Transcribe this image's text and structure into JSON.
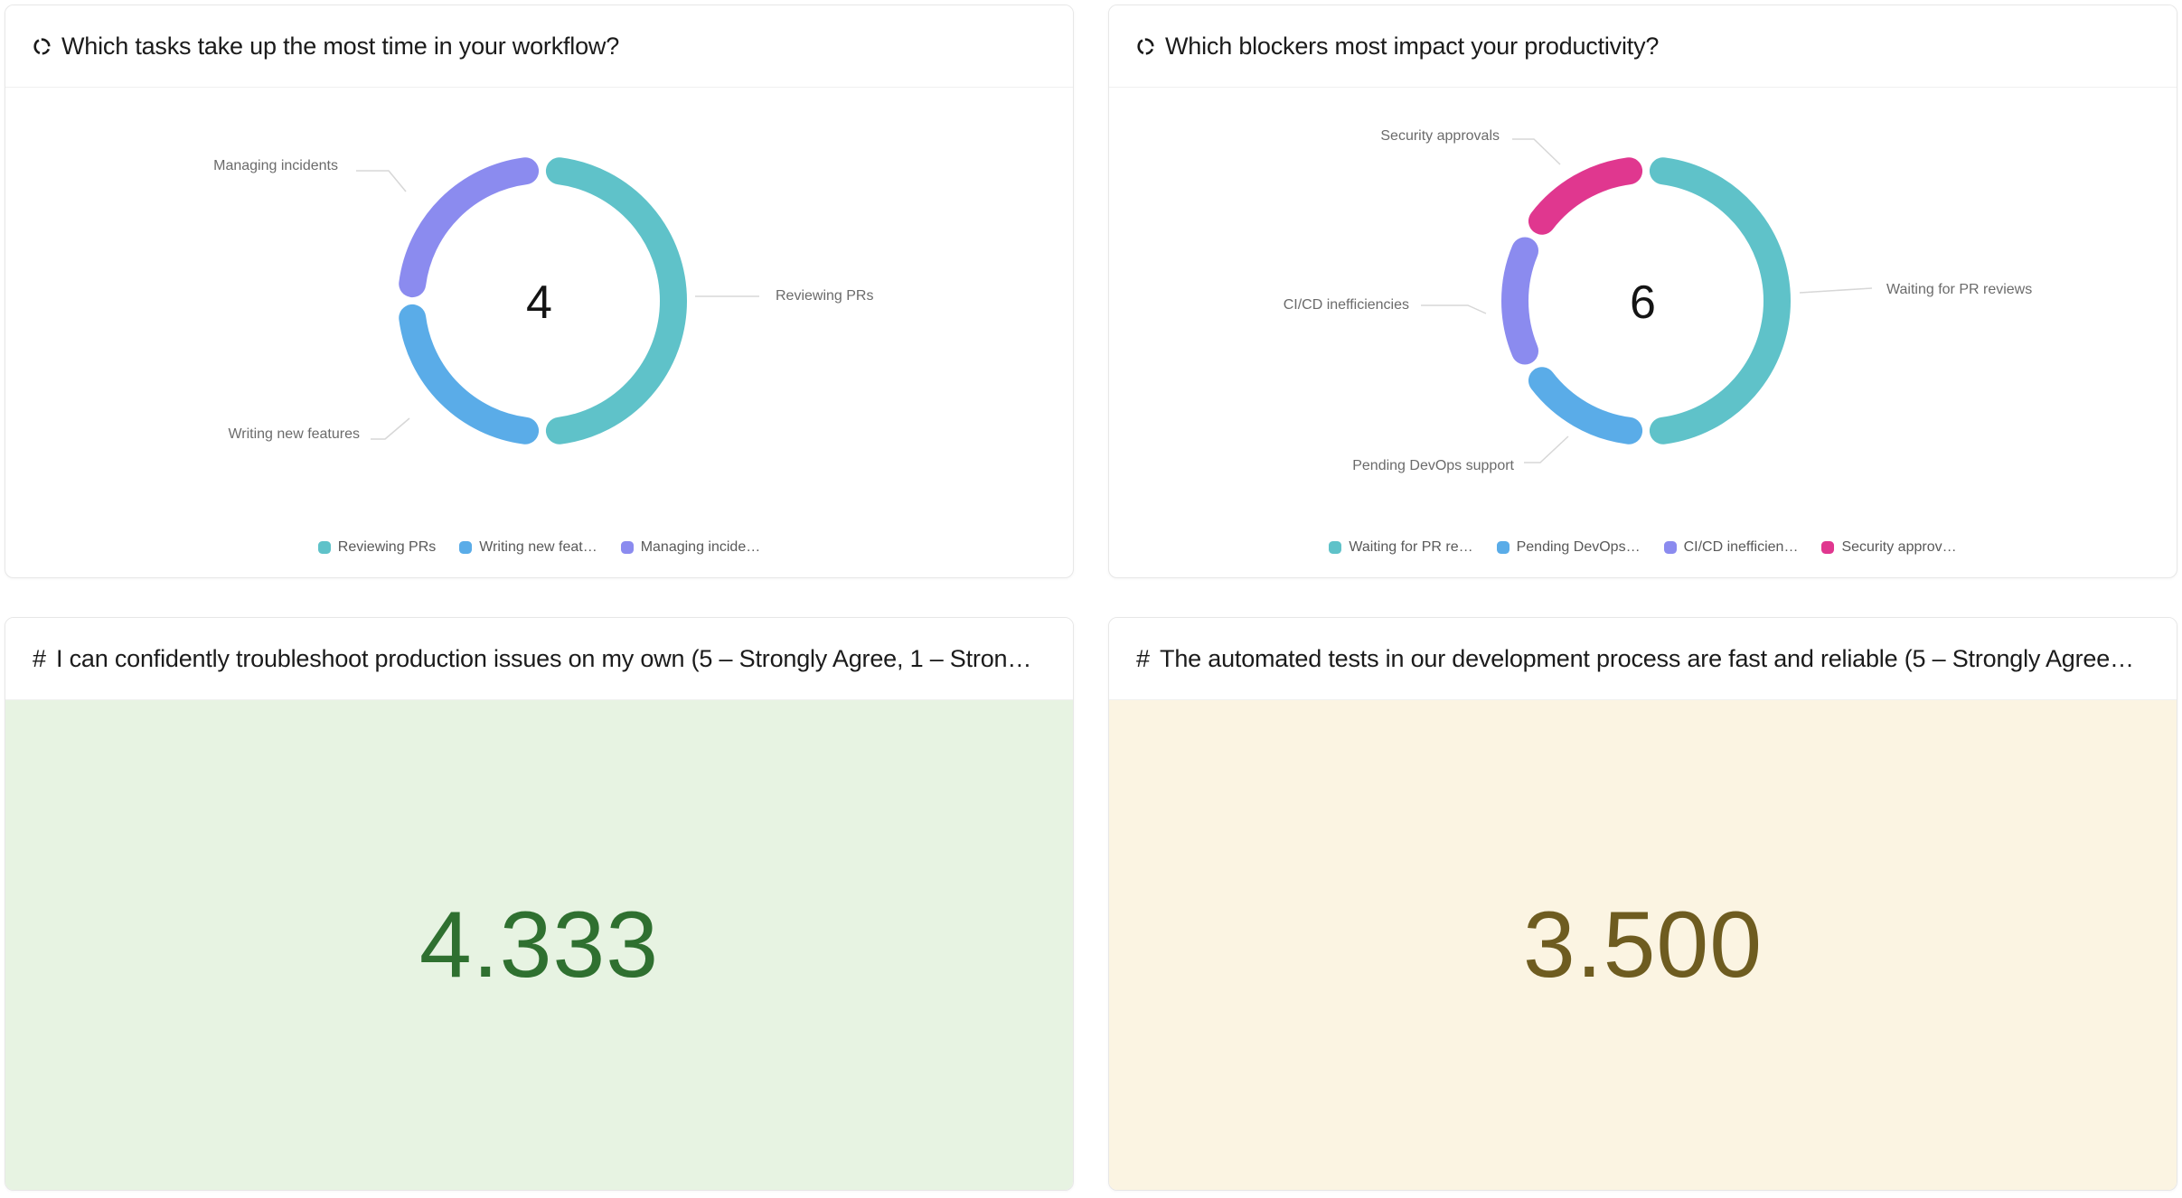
{
  "ui": {
    "number_icon": "#"
  },
  "chart_data": [
    {
      "type": "pie",
      "subtype": "donut",
      "title": "Which tasks take up the most time in your workflow?",
      "categories": [
        "Reviewing PRs",
        "Writing new features",
        "Managing incidents"
      ],
      "values": [
        2,
        1,
        1
      ],
      "total": 4,
      "center_total": "4",
      "colors": [
        "#5fc2c9",
        "#5aace8",
        "#8b8bef"
      ],
      "legend_position": "bottom",
      "legend_labels": [
        "Reviewing PRs",
        "Writing new feat…",
        "Managing incide…"
      ]
    },
    {
      "type": "pie",
      "subtype": "donut",
      "title": "Which blockers most impact your productivity?",
      "categories": [
        "Waiting for PR reviews",
        "Pending DevOps support",
        "CI/CD inefficiencies",
        "Security approvals"
      ],
      "values": [
        3,
        1,
        1,
        1
      ],
      "total": 6,
      "center_total": "6",
      "colors": [
        "#5fc2c9",
        "#5aace8",
        "#8b8bef",
        "#e0378f"
      ],
      "legend_position": "bottom",
      "legend_labels": [
        "Waiting for PR re…",
        "Pending DevOps…",
        "CI/CD inefficien…",
        "Security approv…"
      ]
    },
    {
      "type": "number",
      "title": "I can confidently troubleshoot production issues on my own (5 – Strongly Agree, 1 – Stron…",
      "value": 4.333,
      "display": "4.333",
      "value_color": "#2f7030",
      "background": "#e7f3e2"
    },
    {
      "type": "number",
      "title": "The automated tests in our development process are fast and reliable (5 – Strongly Agree…",
      "value": 3.5,
      "display": "3.500",
      "value_color": "#6e5c20",
      "background": "#fbf4e2"
    }
  ]
}
